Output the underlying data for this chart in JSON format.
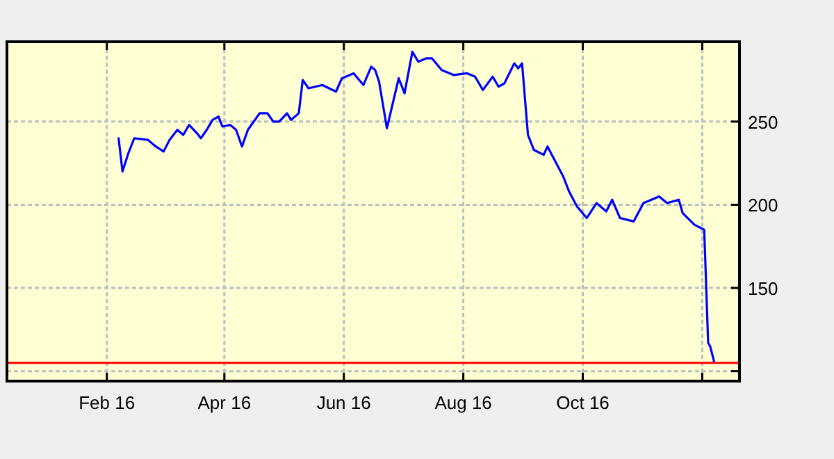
{
  "chart_data": {
    "type": "line",
    "x": [
      "2016-02-07",
      "2016-02-09",
      "2016-02-12",
      "2016-02-15",
      "2016-02-22",
      "2016-02-26",
      "2016-03-01",
      "2016-03-04",
      "2016-03-08",
      "2016-03-11",
      "2016-03-14",
      "2016-03-18",
      "2016-03-20",
      "2016-03-23",
      "2016-03-26",
      "2016-03-29",
      "2016-03-31",
      "2016-04-04",
      "2016-04-07",
      "2016-04-10",
      "2016-04-13",
      "2016-04-19",
      "2016-04-23",
      "2016-04-26",
      "2016-04-29",
      "2016-05-03",
      "2016-05-05",
      "2016-05-09",
      "2016-05-11",
      "2016-05-14",
      "2016-05-21",
      "2016-05-28",
      "2016-05-31",
      "2016-06-06",
      "2016-06-11",
      "2016-06-15",
      "2016-06-17",
      "2016-06-19",
      "2016-06-23",
      "2016-06-29",
      "2016-07-02",
      "2016-07-06",
      "2016-07-09",
      "2016-07-13",
      "2016-07-16",
      "2016-07-21",
      "2016-07-27",
      "2016-08-03",
      "2016-08-07",
      "2016-08-11",
      "2016-08-16",
      "2016-08-19",
      "2016-08-22",
      "2016-08-27",
      "2016-08-29",
      "2016-08-31",
      "2016-09-03",
      "2016-09-06",
      "2016-09-11",
      "2016-09-13",
      "2016-09-17",
      "2016-09-21",
      "2016-09-24",
      "2016-09-28",
      "2016-10-03",
      "2016-10-08",
      "2016-10-13",
      "2016-10-16",
      "2016-10-20",
      "2016-10-27",
      "2016-11-01",
      "2016-11-09",
      "2016-11-13",
      "2016-11-19",
      "2016-11-21",
      "2016-11-27",
      "2016-12-02",
      "2016-12-04",
      "2016-12-05",
      "2016-12-07"
    ],
    "series": [
      {
        "color": "#0000ff",
        "values": [
          240,
          220,
          231,
          240,
          239,
          235,
          232,
          239,
          245,
          242,
          248,
          243,
          240,
          245,
          251,
          253,
          247,
          248,
          245,
          235,
          245,
          255,
          255,
          250,
          250,
          255,
          251,
          255,
          275,
          270,
          272,
          268,
          276,
          279,
          272,
          283,
          281,
          274,
          246,
          276,
          267,
          292,
          286,
          288,
          288,
          281,
          278,
          279,
          277,
          269,
          277,
          271,
          273,
          285,
          282,
          285,
          242,
          233,
          230,
          235,
          226,
          217,
          208,
          199,
          192,
          201,
          196,
          203,
          192,
          190,
          201,
          205,
          201,
          203,
          195,
          188,
          185,
          117,
          115,
          106
        ]
      }
    ],
    "xlim": [
      "2015-12-12",
      "2016-12-20"
    ],
    "xticks": [
      {
        "value": "2016-02-01",
        "label": "Feb 16"
      },
      {
        "value": "2016-04-01",
        "label": "Apr 16"
      },
      {
        "value": "2016-06-01",
        "label": "Jun 16"
      },
      {
        "value": "2016-08-01",
        "label": "Aug 16"
      },
      {
        "value": "2016-10-01",
        "label": "Oct 16"
      },
      {
        "value": "2016-12-01",
        "label": null
      }
    ],
    "ylim": [
      94,
      298
    ],
    "yticks": [
      {
        "value": 100,
        "label": null
      },
      150,
      200,
      250
    ],
    "grid": true,
    "ref_lines": [
      {
        "axis": "y",
        "value": 105,
        "color": "#ff0000"
      }
    ]
  }
}
